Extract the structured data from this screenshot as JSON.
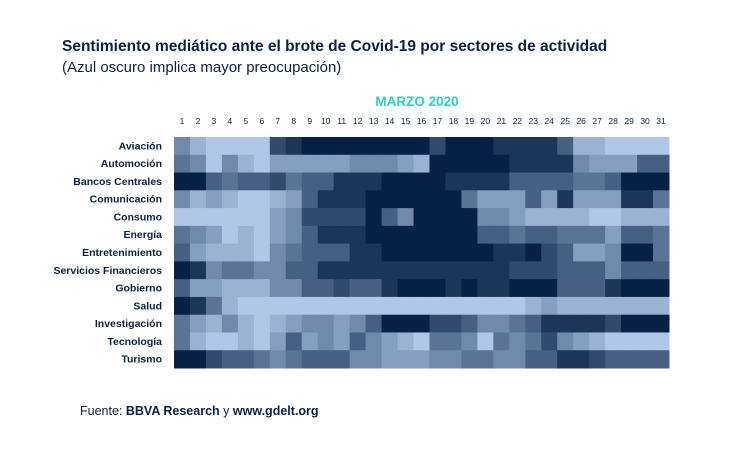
{
  "title": "Sentimiento mediático ante el brote de Covid-19 por sectores de actividad",
  "subtitle": "(Azul oscuro implica mayor preocupación)",
  "source": {
    "prefix": "Fuente: ",
    "org": "BBVA Research",
    "conj": " y ",
    "site": "www.gdelt.org"
  },
  "colors": {
    "low": "#c5dcfb",
    "high": "#072146",
    "month_label": "#2dcccd",
    "text": "#072146"
  },
  "chart_data": {
    "type": "heatmap",
    "title": "Sentimiento mediático ante el brote de Covid-19 por sectores de actividad",
    "subtitle": "(Azul oscuro implica mayor preocupación)",
    "x_title": "MARZO 2020",
    "x": [
      "1",
      "2",
      "3",
      "4",
      "5",
      "6",
      "7",
      "8",
      "9",
      "10",
      "11",
      "12",
      "13",
      "14",
      "15",
      "16",
      "17",
      "18",
      "19",
      "20",
      "21",
      "22",
      "23",
      "24",
      "25",
      "26",
      "27",
      "28",
      "29",
      "30",
      "31"
    ],
    "y": [
      "Aviación",
      "Automoción",
      "Bancos Centrales",
      "Comunicación",
      "Consumo",
      "Energía",
      "Entretenimiento",
      "Servicios Financieros",
      "Gobierno",
      "Salud",
      "Investigación",
      "Tecnología",
      "Turismo"
    ],
    "value_scale": "0 = más claro, 9 = azul más oscuro (mayor preocupación)",
    "values": [
      [
        4,
        2,
        1,
        1,
        1,
        1,
        7,
        8,
        9,
        9,
        9,
        9,
        9,
        9,
        9,
        9,
        7,
        9,
        9,
        9,
        8,
        8,
        8,
        8,
        6,
        2,
        2,
        1,
        1,
        1,
        1
      ],
      [
        5,
        4,
        1,
        4,
        2,
        1,
        3,
        3,
        3,
        3,
        3,
        4,
        4,
        4,
        3,
        2,
        9,
        9,
        9,
        9,
        9,
        8,
        8,
        8,
        8,
        4,
        3,
        3,
        3,
        6,
        6
      ],
      [
        9,
        9,
        6,
        5,
        6,
        6,
        7,
        5,
        6,
        6,
        8,
        8,
        8,
        9,
        9,
        9,
        9,
        8,
        8,
        8,
        8,
        6,
        6,
        6,
        6,
        5,
        5,
        6,
        9,
        9,
        9
      ],
      [
        4,
        2,
        3,
        2,
        1,
        1,
        2,
        3,
        6,
        8,
        8,
        8,
        9,
        9,
        9,
        9,
        9,
        9,
        5,
        3,
        3,
        3,
        6,
        3,
        8,
        3,
        3,
        3,
        8,
        8,
        5
      ],
      [
        1,
        1,
        1,
        1,
        1,
        1,
        3,
        4,
        7,
        7,
        7,
        7,
        9,
        6,
        4,
        9,
        9,
        9,
        9,
        4,
        4,
        3,
        2,
        2,
        2,
        2,
        1,
        1,
        2,
        2,
        2
      ],
      [
        5,
        4,
        3,
        1,
        2,
        1,
        3,
        4,
        6,
        8,
        8,
        8,
        9,
        9,
        9,
        9,
        9,
        9,
        9,
        6,
        6,
        5,
        6,
        6,
        5,
        5,
        5,
        3,
        6,
        6,
        5
      ],
      [
        6,
        3,
        2,
        2,
        2,
        1,
        4,
        5,
        6,
        6,
        6,
        8,
        8,
        9,
        9,
        9,
        9,
        9,
        9,
        9,
        8,
        8,
        9,
        7,
        6,
        3,
        3,
        4,
        9,
        9,
        5
      ],
      [
        9,
        8,
        4,
        5,
        5,
        4,
        4,
        6,
        6,
        8,
        8,
        8,
        8,
        8,
        8,
        8,
        8,
        8,
        8,
        8,
        8,
        7,
        7,
        7,
        6,
        6,
        6,
        4,
        6,
        6,
        6
      ],
      [
        6,
        3,
        3,
        2,
        2,
        2,
        4,
        4,
        6,
        6,
        7,
        6,
        6,
        8,
        9,
        9,
        9,
        8,
        9,
        8,
        8,
        9,
        9,
        9,
        6,
        6,
        6,
        8,
        9,
        9,
        9
      ],
      [
        9,
        8,
        5,
        2,
        1,
        1,
        1,
        1,
        1,
        1,
        1,
        1,
        1,
        1,
        1,
        1,
        1,
        1,
        1,
        1,
        1,
        1,
        2,
        3,
        2,
        2,
        2,
        2,
        2,
        2,
        2
      ],
      [
        5,
        3,
        2,
        4,
        2,
        1,
        2,
        3,
        4,
        4,
        3,
        4,
        6,
        9,
        9,
        9,
        7,
        7,
        6,
        4,
        4,
        5,
        6,
        8,
        8,
        8,
        8,
        7,
        9,
        9,
        9
      ],
      [
        5,
        2,
        1,
        1,
        2,
        1,
        3,
        6,
        3,
        4,
        3,
        6,
        4,
        3,
        2,
        1,
        5,
        5,
        4,
        1,
        5,
        4,
        5,
        7,
        4,
        3,
        2,
        1,
        1,
        1,
        1
      ],
      [
        9,
        9,
        7,
        6,
        6,
        5,
        4,
        5,
        6,
        6,
        6,
        4,
        4,
        3,
        3,
        3,
        4,
        4,
        5,
        5,
        4,
        4,
        6,
        6,
        8,
        8,
        7,
        6,
        6,
        6,
        6
      ]
    ]
  }
}
